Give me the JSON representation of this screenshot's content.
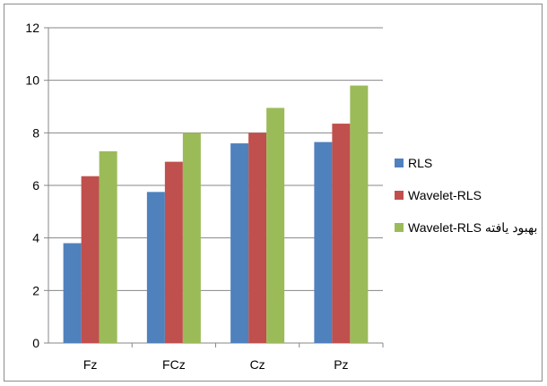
{
  "chart_data": {
    "type": "bar",
    "categories": [
      "Fz",
      "FCz",
      "Cz",
      "Pz"
    ],
    "series": [
      {
        "name": "RLS",
        "color": "#4F81BD",
        "values": [
          3.8,
          5.75,
          7.6,
          7.65
        ]
      },
      {
        "name": "Wavelet-RLS",
        "color": "#C0504D",
        "values": [
          6.35,
          6.9,
          8.0,
          8.35
        ]
      },
      {
        "name": "Wavelet-RLS بهبود یافته",
        "color": "#9BBB59",
        "values": [
          7.3,
          8.0,
          8.95,
          9.8
        ]
      }
    ],
    "ylim": [
      0,
      12
    ],
    "yticks": [
      0,
      2,
      4,
      6,
      8,
      10,
      12
    ],
    "ytick_labels": [
      "0",
      "2",
      "4",
      "6",
      "8",
      "10",
      "12"
    ],
    "grid": "horizontal",
    "legend_position": "right",
    "title": "",
    "xlabel": "",
    "ylabel": ""
  }
}
